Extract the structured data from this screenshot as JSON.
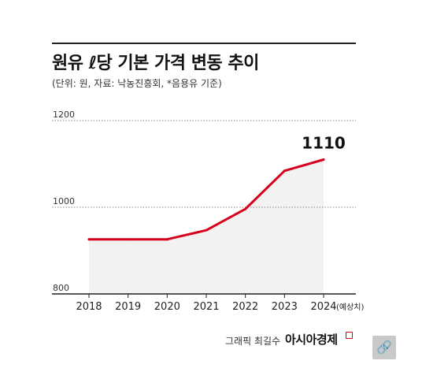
{
  "header": {
    "title": "원유 ℓ당 기본 가격 변동 추이",
    "subtitle": "(단위: 원, 자료: 낙농진흥회, *음용유 기준)"
  },
  "footer": {
    "credit": "그래픽 최길수",
    "brand": "아시아경제",
    "link_icon": "link-icon"
  },
  "colors": {
    "line": "#d6001c",
    "area": "#f2f2f2",
    "grid": "#888888"
  },
  "chart_data": {
    "type": "line",
    "categories": [
      "2018",
      "2019",
      "2020",
      "2021",
      "2022",
      "2023",
      "2024"
    ],
    "category_notes": [
      "",
      "",
      "",
      "",
      "",
      "",
      "(예상치)"
    ],
    "values": [
      926,
      926,
      926,
      947,
      996,
      1084,
      1110
    ],
    "ylim": [
      800,
      1200
    ],
    "yticks": [
      800,
      1000,
      1200
    ],
    "grid": true,
    "area_fill": true,
    "annotations": [
      {
        "category": "2024",
        "text": "1110"
      }
    ]
  }
}
